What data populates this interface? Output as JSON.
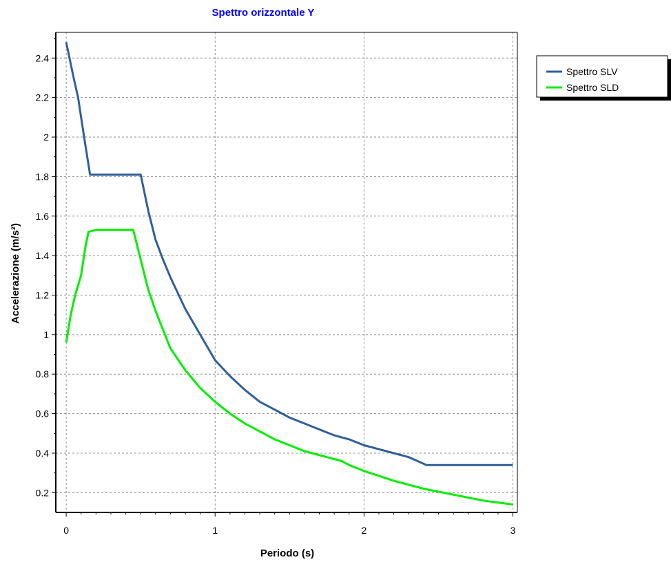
{
  "chart_data": {
    "type": "line",
    "title": "Spettro orizzontale Y",
    "xlabel": "Periodo (s)",
    "ylabel": "Accelerazione (m/s²)",
    "xlim": [
      -0.07,
      3.03
    ],
    "ylim": [
      0.1,
      2.53
    ],
    "x_ticks": [
      0,
      1,
      2,
      3
    ],
    "x_tick_labels": [
      "0",
      "1",
      "2",
      "3"
    ],
    "y_ticks": [
      0.2,
      0.4,
      0.6,
      0.8,
      1.0,
      1.2,
      1.4,
      1.6,
      1.8,
      2.0,
      2.2,
      2.4
    ],
    "y_tick_labels": [
      "0.2",
      "0.4",
      "0.6",
      "0.8",
      "1",
      "1.2",
      "1.4",
      "1.6",
      "1.8",
      "2",
      "2.2",
      "2.4"
    ],
    "grid": true,
    "legend_position": "top-right",
    "title_color": "#0000ff",
    "series": [
      {
        "name": "Spettro SLV",
        "color": "#2f5f9a",
        "x": [
          0,
          0.05,
          0.08,
          0.1,
          0.12,
          0.16,
          0.2,
          0.3,
          0.4,
          0.5,
          0.55,
          0.6,
          0.65,
          0.7,
          0.8,
          0.9,
          1.0,
          1.1,
          1.2,
          1.3,
          1.4,
          1.5,
          1.6,
          1.7,
          1.8,
          1.9,
          2.0,
          2.1,
          2.2,
          2.3,
          2.42,
          2.6,
          2.8,
          3.0
        ],
        "y": [
          2.48,
          2.3,
          2.2,
          2.1,
          2.0,
          1.81,
          1.81,
          1.81,
          1.81,
          1.81,
          1.63,
          1.48,
          1.38,
          1.29,
          1.13,
          1.0,
          0.87,
          0.79,
          0.72,
          0.66,
          0.62,
          0.58,
          0.55,
          0.52,
          0.49,
          0.47,
          0.44,
          0.42,
          0.4,
          0.38,
          0.34,
          0.34,
          0.34,
          0.34
        ]
      },
      {
        "name": "Spettro SLD",
        "color": "#00ee00",
        "x": [
          0,
          0.03,
          0.06,
          0.1,
          0.13,
          0.15,
          0.2,
          0.3,
          0.4,
          0.45,
          0.5,
          0.55,
          0.6,
          0.7,
          0.8,
          0.9,
          1.0,
          1.1,
          1.2,
          1.3,
          1.4,
          1.5,
          1.6,
          1.7,
          1.85,
          1.9,
          2.0,
          2.2,
          2.4,
          2.6,
          2.8,
          3.0
        ],
        "y": [
          0.96,
          1.1,
          1.2,
          1.3,
          1.45,
          1.52,
          1.53,
          1.53,
          1.53,
          1.53,
          1.38,
          1.23,
          1.12,
          0.93,
          0.82,
          0.73,
          0.66,
          0.6,
          0.55,
          0.51,
          0.47,
          0.44,
          0.41,
          0.39,
          0.36,
          0.34,
          0.31,
          0.26,
          0.22,
          0.19,
          0.16,
          0.14
        ]
      }
    ]
  }
}
